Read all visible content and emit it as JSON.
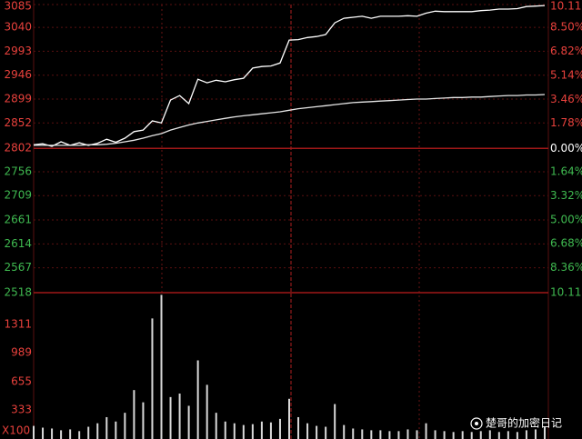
{
  "chart_data": [
    {
      "type": "line",
      "ylim": [
        2518,
        3085
      ],
      "yticks": [
        3085,
        3040,
        2993,
        2946,
        2899,
        2852,
        2802,
        2756,
        2709,
        2661,
        2614,
        2567,
        2518
      ],
      "y2lim": [
        -10.11,
        10.11
      ],
      "y2ticks": [
        {
          "value": 10.11,
          "label": "10.11%"
        },
        {
          "value": 8.5,
          "label": "8.50%"
        },
        {
          "value": 6.82,
          "label": "6.82%"
        },
        {
          "value": 5.14,
          "label": "5.14%"
        },
        {
          "value": 3.46,
          "label": "3.46%"
        },
        {
          "value": 1.78,
          "label": "1.78%"
        },
        {
          "value": 0,
          "label": "0.00%"
        },
        {
          "value": -1.64,
          "label": "1.64%"
        },
        {
          "value": -3.32,
          "label": "3.32%"
        },
        {
          "value": -5.0,
          "label": "5.00%"
        },
        {
          "value": -6.68,
          "label": "6.68%"
        },
        {
          "value": -8.36,
          "label": "8.36%"
        },
        {
          "value": -10.11,
          "label": "10.11%"
        }
      ],
      "grid": true,
      "up_color": "#e8413c",
      "down_color": "#3fb950",
      "flat_color": "#ffffff",
      "series": [
        {
          "color": "#ffffff",
          "values": [
            2809,
            2811,
            2806,
            2815,
            2808,
            2813,
            2808,
            2812,
            2820,
            2814,
            2822,
            2835,
            2838,
            2856,
            2852,
            2897,
            2906,
            2890,
            2938,
            2931,
            2936,
            2933,
            2937,
            2940,
            2960,
            2963,
            2964,
            2970,
            3015,
            3016,
            3020,
            3022,
            3026,
            3049,
            3058,
            3060,
            3062,
            3058,
            3062,
            3062,
            3062,
            3063,
            3062,
            3068,
            3072,
            3071,
            3071,
            3071,
            3071,
            3073,
            3074,
            3076,
            3076,
            3077,
            3081,
            3082,
            3083
          ]
        },
        {
          "color": "#e6e6e6",
          "values": [
            2808,
            2808,
            2808,
            2808,
            2808,
            2808,
            2809,
            2809,
            2810,
            2812,
            2815,
            2818,
            2822,
            2827,
            2831,
            2838,
            2843,
            2848,
            2852,
            2855,
            2858,
            2861,
            2864,
            2866,
            2868,
            2870,
            2872,
            2874,
            2877,
            2880,
            2882,
            2884,
            2886,
            2888,
            2890,
            2892,
            2893,
            2894,
            2895,
            2896,
            2897,
            2898,
            2899,
            2899,
            2900,
            2901,
            2902,
            2902,
            2903,
            2903,
            2904,
            2905,
            2906,
            2906,
            2907,
            2907,
            2908
          ]
        }
      ]
    },
    {
      "type": "bar",
      "ylabel": "X100",
      "ylim": [
        0,
        1675
      ],
      "yticks": [
        1311,
        989,
        655,
        333
      ],
      "color": "#d9d9d9",
      "tick_color": "#e8413c",
      "values": [
        150,
        130,
        120,
        100,
        110,
        90,
        140,
        180,
        250,
        200,
        300,
        560,
        420,
        1380,
        1650,
        480,
        520,
        380,
        900,
        620,
        300,
        200,
        180,
        160,
        170,
        200,
        190,
        230,
        460,
        250,
        180,
        150,
        140,
        400,
        160,
        120,
        110,
        100,
        100,
        90,
        90,
        110,
        100,
        180,
        100,
        90,
        80,
        90,
        80,
        90,
        100,
        80,
        90,
        80,
        100,
        110,
        140
      ]
    }
  ],
  "watermark": "楚哥的加密日记"
}
